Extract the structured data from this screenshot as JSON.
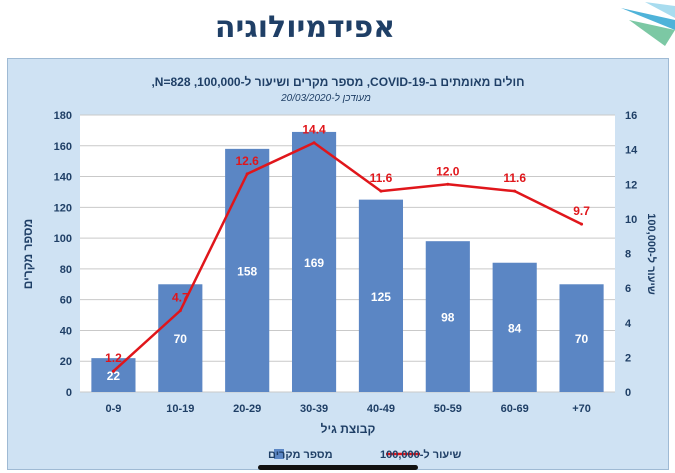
{
  "slide": {
    "title": "אפידמיולוגיה"
  },
  "colors": {
    "bar": "#5b86c4",
    "line": "#e0161b",
    "axis_text": "#1f3f66",
    "chart_bg": "#cfe2f3",
    "plot_bg": "#ffffff"
  },
  "chart_data": {
    "type": "bar",
    "title": "חולים מאומתים ב-COVID-19, מספר מקרים ושיעור ל-100,000, N=828,",
    "subtitle": "מעודכן ל-20/03/2020",
    "categories": [
      "0-9",
      "10-19",
      "20-29",
      "30-39",
      "40-49",
      "50-59",
      "60-69",
      "+70"
    ],
    "xlabel": "קבוצת גיל",
    "ylabel": "מספר מקרים",
    "y2label": "שיעור ל-100,000",
    "ylim": [
      0,
      180
    ],
    "yticks": [
      0,
      20,
      40,
      60,
      80,
      100,
      120,
      140,
      160,
      180
    ],
    "y2lim": [
      0,
      16
    ],
    "y2ticks": [
      0,
      2,
      4,
      6,
      8,
      10,
      12,
      14,
      16
    ],
    "grid": true,
    "legend_position": "bottom",
    "series": [
      {
        "name": "מספר מקרים",
        "type": "bar",
        "axis": "left",
        "values": [
          22,
          70,
          158,
          169,
          125,
          98,
          84,
          70
        ],
        "labels": [
          "22",
          "70",
          "158",
          "169",
          "125",
          "98",
          "84",
          "70"
        ]
      },
      {
        "name": "שיעור ל-100,000",
        "type": "line",
        "axis": "right",
        "values": [
          1.2,
          4.7,
          12.6,
          14.4,
          11.6,
          12.0,
          11.6,
          9.7
        ],
        "labels": [
          "1.2",
          "4.7",
          "12.6",
          "14.4",
          "11.6",
          "12.0",
          "11.6",
          "9.7"
        ]
      }
    ]
  }
}
